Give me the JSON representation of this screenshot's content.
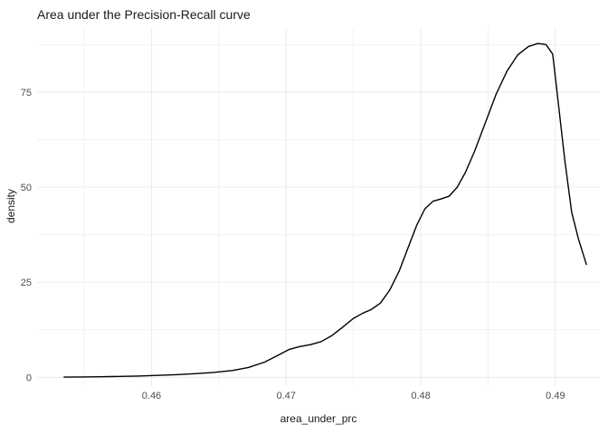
{
  "colors": {
    "background": "#ffffff",
    "grid_major": "#ebebeb",
    "grid_minor": "#f1f1f1",
    "axis_text": "#4d4d4d",
    "title_text": "#1a1a1a",
    "line": "#000000"
  },
  "chart_data": {
    "type": "line",
    "title": "Area under the Precision-Recall curve",
    "xlabel": "area_under_prc",
    "ylabel": "density",
    "legend_position": "none",
    "grid": "major+minor",
    "xlim": [
      0.4515,
      0.4933
    ],
    "ylim": [
      -2.3,
      92.1
    ],
    "x_ticks_major": [
      0.46,
      0.47,
      0.48,
      0.49
    ],
    "x_tick_labels": [
      "0.46",
      "0.47",
      "0.48",
      "0.49"
    ],
    "x_ticks_minor": [
      0.455,
      0.465,
      0.475,
      0.485
    ],
    "y_ticks_major": [
      0,
      25,
      50,
      75
    ],
    "y_tick_labels": [
      "0",
      "25",
      "50",
      "75"
    ],
    "y_ticks_minor": [
      12.5,
      37.5,
      62.5,
      87.5
    ],
    "series": [
      {
        "name": "density",
        "color": "#000000",
        "width": 1.4,
        "points": [
          [
            0.4535,
            0.05
          ],
          [
            0.4548,
            0.1
          ],
          [
            0.4562,
            0.15
          ],
          [
            0.4576,
            0.25
          ],
          [
            0.459,
            0.35
          ],
          [
            0.4604,
            0.5
          ],
          [
            0.4618,
            0.7
          ],
          [
            0.4632,
            0.95
          ],
          [
            0.4646,
            1.3
          ],
          [
            0.466,
            1.8
          ],
          [
            0.4672,
            2.6
          ],
          [
            0.4684,
            4.0
          ],
          [
            0.4694,
            5.8
          ],
          [
            0.4702,
            7.3
          ],
          [
            0.471,
            8.1
          ],
          [
            0.4718,
            8.6
          ],
          [
            0.4726,
            9.4
          ],
          [
            0.4734,
            11.0
          ],
          [
            0.4742,
            13.2
          ],
          [
            0.475,
            15.5
          ],
          [
            0.4757,
            16.9
          ],
          [
            0.4763,
            17.8
          ],
          [
            0.477,
            19.5
          ],
          [
            0.4777,
            23.0
          ],
          [
            0.4784,
            28.0
          ],
          [
            0.4791,
            34.5
          ],
          [
            0.4797,
            40.0
          ],
          [
            0.4803,
            44.3
          ],
          [
            0.4809,
            46.3
          ],
          [
            0.4815,
            46.9
          ],
          [
            0.4821,
            47.6
          ],
          [
            0.4827,
            50.0
          ],
          [
            0.4833,
            53.8
          ],
          [
            0.484,
            59.5
          ],
          [
            0.4848,
            67.0
          ],
          [
            0.4856,
            74.5
          ],
          [
            0.4864,
            80.5
          ],
          [
            0.4872,
            84.8
          ],
          [
            0.488,
            87.0
          ],
          [
            0.4887,
            87.8
          ],
          [
            0.4893,
            87.5
          ],
          [
            0.4898,
            85.0
          ],
          [
            0.4902,
            72.5
          ],
          [
            0.4907,
            57.0
          ],
          [
            0.4912,
            43.5
          ],
          [
            0.4917,
            36.5
          ],
          [
            0.4923,
            29.7
          ]
        ]
      }
    ]
  }
}
